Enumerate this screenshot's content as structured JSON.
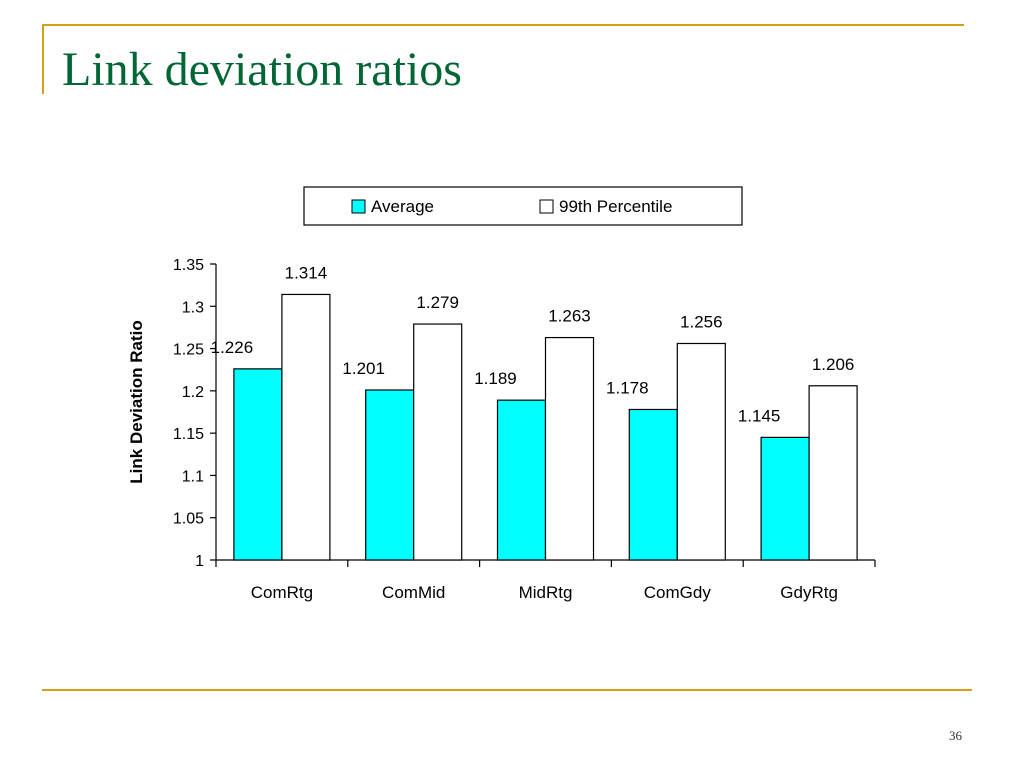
{
  "slide": {
    "title": "Link deviation ratios",
    "page_number": "36",
    "accent_color": "#d4a017",
    "title_color": "#006633"
  },
  "chart_data": {
    "type": "bar",
    "categories": [
      "ComRtg",
      "ComMid",
      "MidRtg",
      "ComGdy",
      "GdyRtg"
    ],
    "series": [
      {
        "name": "Average",
        "values": [
          1.226,
          1.201,
          1.189,
          1.178,
          1.145
        ],
        "color": "#00ffff"
      },
      {
        "name": "99th Percentile",
        "values": [
          1.314,
          1.279,
          1.263,
          1.256,
          1.206
        ],
        "color": "#ffffff"
      }
    ],
    "data_labels": [
      [
        "1.226",
        "1.201",
        "1.189",
        "1.178",
        "1.145"
      ],
      [
        "1.314",
        "1.279",
        "1.263",
        "1.256",
        "1.206"
      ]
    ],
    "ylabel": "Link Deviation Ratio",
    "xlabel": "",
    "ylim": [
      1,
      1.35
    ],
    "yticks": [
      "1",
      "1.05",
      "1.1",
      "1.15",
      "1.2",
      "1.25",
      "1.3",
      "1.35"
    ],
    "legend_position": "top",
    "grid": false
  }
}
